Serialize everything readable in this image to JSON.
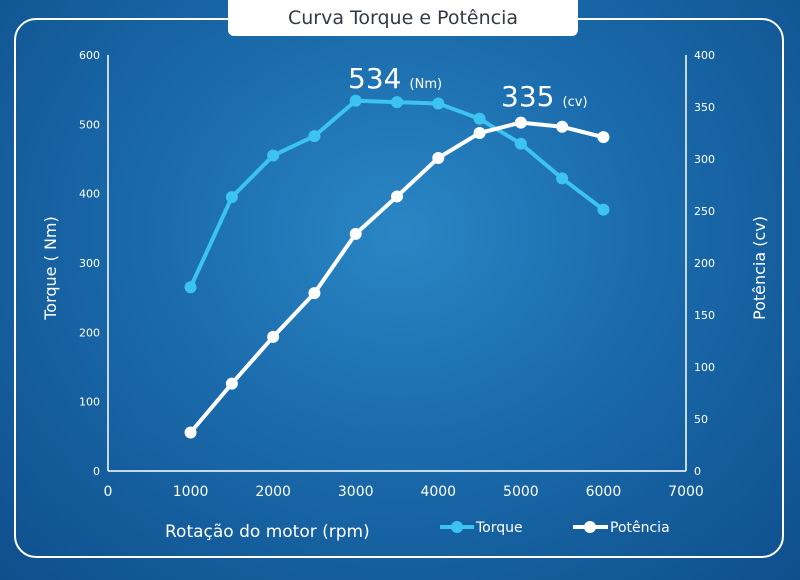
{
  "chart_data": {
    "type": "line",
    "title": "Curva Torque e Potência",
    "xlabel": "Rotação do motor (rpm)",
    "ylabel_left": "Torque ( Nm)",
    "ylabel_right": "Potência (cv)",
    "xlim": [
      0,
      7000
    ],
    "xticks": [
      0,
      1000,
      2000,
      3000,
      4000,
      5000,
      6000,
      7000
    ],
    "ylim_left": [
      0,
      600
    ],
    "yticks_left": [
      0,
      100,
      200,
      300,
      400,
      500,
      600
    ],
    "ylim_right": [
      0,
      400
    ],
    "yticks_right": [
      0,
      50,
      100,
      150,
      200,
      250,
      300,
      350,
      400
    ],
    "grid": false,
    "legend": "bottom-right",
    "series": [
      {
        "name": "Torque",
        "axis": "left",
        "color": "#3cc3f2",
        "x": [
          1000,
          1500,
          2000,
          2500,
          3000,
          3500,
          4000,
          4500,
          5000,
          5500,
          6000
        ],
        "values": [
          265,
          395,
          455,
          483,
          534,
          532,
          530,
          508,
          472,
          422,
          377
        ]
      },
      {
        "name": "Potência",
        "axis": "right",
        "color": "#ffffff",
        "x": [
          1000,
          1500,
          2000,
          2500,
          3000,
          3500,
          4000,
          4500,
          5000,
          5500,
          6000
        ],
        "values": [
          37,
          84,
          129,
          171,
          228,
          264,
          301,
          325,
          335,
          331,
          321
        ]
      }
    ],
    "annotations": [
      {
        "value": "534",
        "unit": "(Nm)"
      },
      {
        "value": "335",
        "unit": "(cv)"
      }
    ]
  }
}
